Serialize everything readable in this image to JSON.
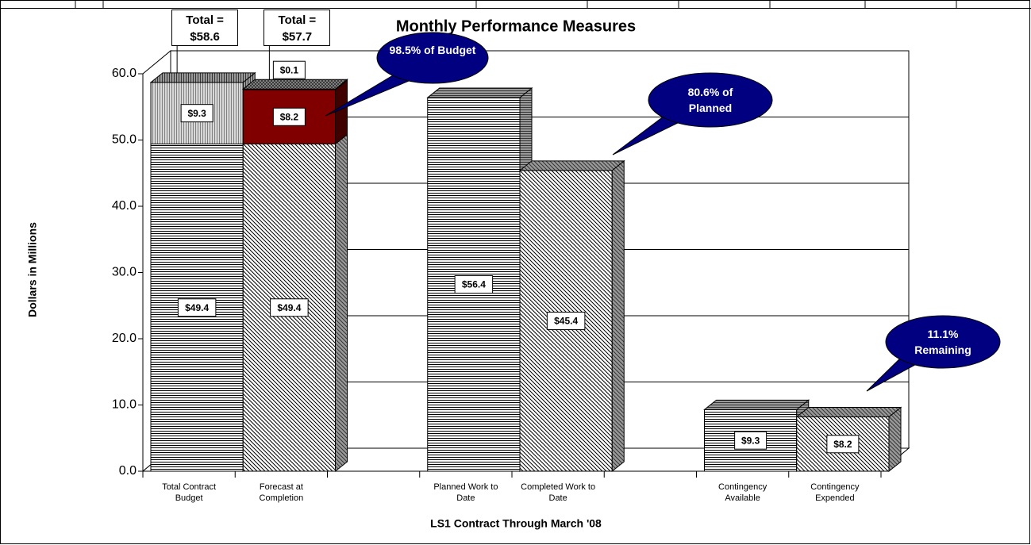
{
  "chart_data": {
    "type": "bar",
    "stacked": true,
    "title": "Monthly Performance Measures",
    "xlabel": "LS1 Contract Through March '08",
    "ylabel": "Dollars in Millions",
    "categories": [
      "Total Contract Budget",
      "Forecast at Completion",
      null,
      "Planned Work to Date",
      "Completed Work to Date",
      null,
      "Contingency Available",
      "Contingency Expended"
    ],
    "series": [
      {
        "values": [
          49.4,
          49.4,
          null,
          56.4,
          45.4,
          null,
          9.3,
          8.2
        ],
        "value_labels": [
          "$49.4",
          "$49.4",
          null,
          "$56.4",
          "$45.4",
          null,
          "$9.3",
          "$8.2"
        ],
        "patterns": [
          "horizontal",
          "diagonal",
          null,
          "horizontal",
          "diagonal",
          null,
          "horizontal",
          "diagonal"
        ],
        "colors": [
          "#000000",
          "#000000",
          null,
          "#000000",
          "#000000",
          null,
          "#000000",
          "#000000"
        ]
      },
      {
        "values": [
          9.3,
          8.2,
          null,
          null,
          null,
          null,
          null,
          null
        ],
        "value_labels": [
          "$9.3",
          "$8.2",
          null,
          null,
          null,
          null,
          null,
          null
        ],
        "patterns": [
          "vertical",
          "solid",
          null,
          null,
          null,
          null,
          null,
          null
        ],
        "colors": [
          "#808080",
          "#800000",
          null,
          null,
          null,
          null,
          null,
          null
        ]
      },
      {
        "values": [
          null,
          0.1,
          null,
          null,
          null,
          null,
          null,
          null
        ],
        "value_labels": [
          null,
          "$0.1",
          null,
          null,
          null,
          null,
          null,
          null
        ],
        "patterns": [
          null,
          "crosshatch",
          null,
          null,
          null,
          null,
          null,
          null
        ],
        "colors": [
          null,
          "#808080",
          null,
          null,
          null,
          null,
          null,
          null
        ]
      }
    ],
    "total_labels": [
      "Total = $58.6",
      "Total = $57.7",
      null,
      null,
      null,
      null,
      null,
      null
    ],
    "annotations": [
      "98.5% of Budget",
      "80.6% of Planned",
      "11.1% Remaining"
    ],
    "ylim": [
      0,
      60
    ],
    "yticks": [
      {
        "value": 0,
        "label": "0.0"
      },
      {
        "value": 10,
        "label": "10.0"
      },
      {
        "value": 20,
        "label": "20.0"
      },
      {
        "value": 30,
        "label": "30.0"
      },
      {
        "value": 40,
        "label": "40.0"
      },
      {
        "value": 50,
        "label": "50.0"
      },
      {
        "value": 60,
        "label": "60.0"
      }
    ],
    "grid": true
  }
}
